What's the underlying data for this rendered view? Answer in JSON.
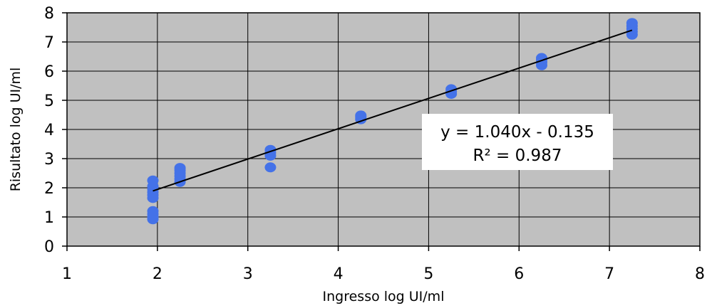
{
  "chart_data": {
    "type": "scatter",
    "xlabel": "Ingresso log UI/ml",
    "ylabel": "Risultato log UI/ml",
    "xlim": [
      1,
      8
    ],
    "ylim": [
      0,
      8
    ],
    "x_ticks": [
      "1",
      "2",
      "3",
      "4",
      "5",
      "6",
      "7",
      "8"
    ],
    "y_ticks": [
      "0",
      "1",
      "2",
      "3",
      "4",
      "5",
      "6",
      "7",
      "8"
    ],
    "grid": true,
    "plot_background": "#c0c0c0",
    "point_color": "#4472e8",
    "line_color": "#000000",
    "points": [
      {
        "x": 1.95,
        "y": 0.92
      },
      {
        "x": 1.95,
        "y": 1.0
      },
      {
        "x": 1.95,
        "y": 1.1
      },
      {
        "x": 1.95,
        "y": 1.2
      },
      {
        "x": 1.95,
        "y": 1.65
      },
      {
        "x": 1.95,
        "y": 1.75
      },
      {
        "x": 1.95,
        "y": 1.85
      },
      {
        "x": 1.95,
        "y": 1.95
      },
      {
        "x": 1.95,
        "y": 2.05
      },
      {
        "x": 1.95,
        "y": 2.25
      },
      {
        "x": 2.25,
        "y": 2.2
      },
      {
        "x": 2.25,
        "y": 2.3
      },
      {
        "x": 2.25,
        "y": 2.4
      },
      {
        "x": 2.25,
        "y": 2.5
      },
      {
        "x": 2.25,
        "y": 2.6
      },
      {
        "x": 2.25,
        "y": 2.68
      },
      {
        "x": 3.25,
        "y": 2.7
      },
      {
        "x": 3.25,
        "y": 3.1
      },
      {
        "x": 3.25,
        "y": 3.2
      },
      {
        "x": 3.25,
        "y": 3.3
      },
      {
        "x": 4.25,
        "y": 4.35
      },
      {
        "x": 4.25,
        "y": 4.42
      },
      {
        "x": 4.25,
        "y": 4.48
      },
      {
        "x": 5.25,
        "y": 5.22
      },
      {
        "x": 5.25,
        "y": 5.3
      },
      {
        "x": 5.25,
        "y": 5.38
      },
      {
        "x": 6.25,
        "y": 6.2
      },
      {
        "x": 6.25,
        "y": 6.3
      },
      {
        "x": 6.25,
        "y": 6.38
      },
      {
        "x": 6.25,
        "y": 6.45
      },
      {
        "x": 7.25,
        "y": 7.25
      },
      {
        "x": 7.25,
        "y": 7.35
      },
      {
        "x": 7.25,
        "y": 7.45
      },
      {
        "x": 7.25,
        "y": 7.55
      },
      {
        "x": 7.25,
        "y": 7.65
      }
    ],
    "trendline": {
      "x_start": 1.95,
      "x_end": 7.25,
      "slope": 1.04,
      "intercept": -0.135
    },
    "annotation": {
      "equation": "y = 1.040x - 0.135",
      "r2": "R² = 0.987"
    }
  }
}
